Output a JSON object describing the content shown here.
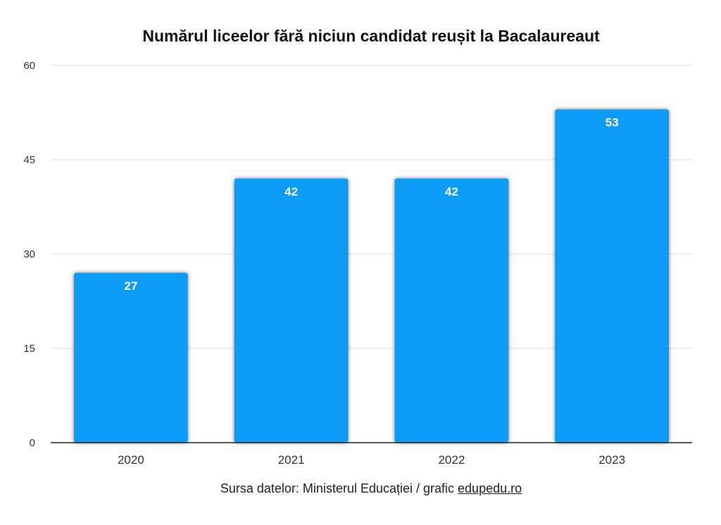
{
  "chart_data": {
    "type": "bar",
    "title": "Numărul liceelor fără niciun candidat reușit la Bacalaureaut",
    "categories": [
      "2020",
      "2021",
      "2022",
      "2023"
    ],
    "values": [
      27,
      42,
      42,
      53
    ],
    "data_labels": [
      "27",
      "42",
      "42",
      "53"
    ],
    "xlabel": "",
    "ylabel": "",
    "ylim": [
      0,
      60
    ],
    "yticks": [
      0,
      15,
      30,
      45,
      60
    ],
    "ytick_labels": [
      "0",
      "15",
      "30",
      "45",
      "60"
    ],
    "grid": true,
    "legend": "none",
    "bar_color": "#0A9CF5",
    "grid_color": "#DDDDDD",
    "label_color": "#FFFFFF"
  },
  "source": {
    "prefix": "Sursa datelor: Ministerul Educației / grafic ",
    "link_text": "edupedu.ro"
  }
}
